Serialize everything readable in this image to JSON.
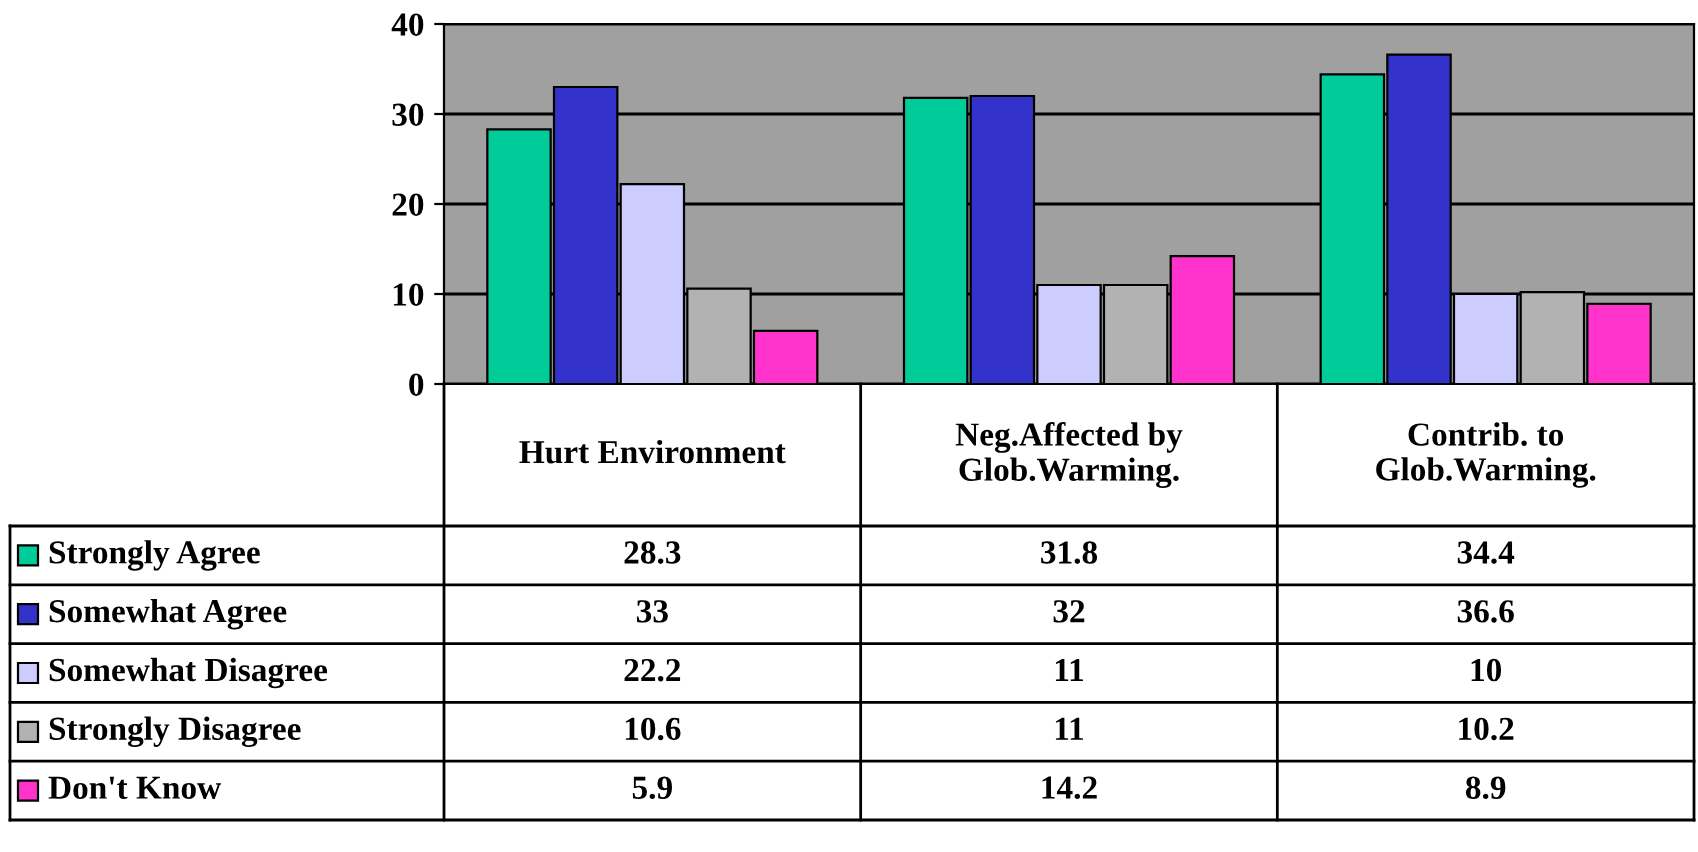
{
  "chart_data": {
    "type": "bar",
    "categories": [
      "Hurt Environment",
      "Neg.Affected by\nGlob.Warming.",
      "Contrib. to\nGlob.Warming."
    ],
    "series": [
      {
        "name": "Strongly Agree",
        "color": "#00cc99",
        "values": [
          28.3,
          31.8,
          34.4
        ]
      },
      {
        "name": "Somewhat Agree",
        "color": "#3333cc",
        "values": [
          33,
          32,
          36.6
        ]
      },
      {
        "name": "Somewhat Disagree",
        "color": "#ccccff",
        "values": [
          22.2,
          11,
          10
        ]
      },
      {
        "name": "Strongly Disagree",
        "color": "#b2b2b2",
        "values": [
          10.6,
          11,
          10.2
        ]
      },
      {
        "name": "Don't Know",
        "color": "#ff33cc",
        "values": [
          5.9,
          14.2,
          8.9
        ]
      }
    ],
    "ylim": [
      0,
      40
    ],
    "yticks": [
      0,
      10,
      20,
      30,
      40
    ],
    "grid": "y",
    "legend": "bottom left",
    "data_labels": true
  }
}
